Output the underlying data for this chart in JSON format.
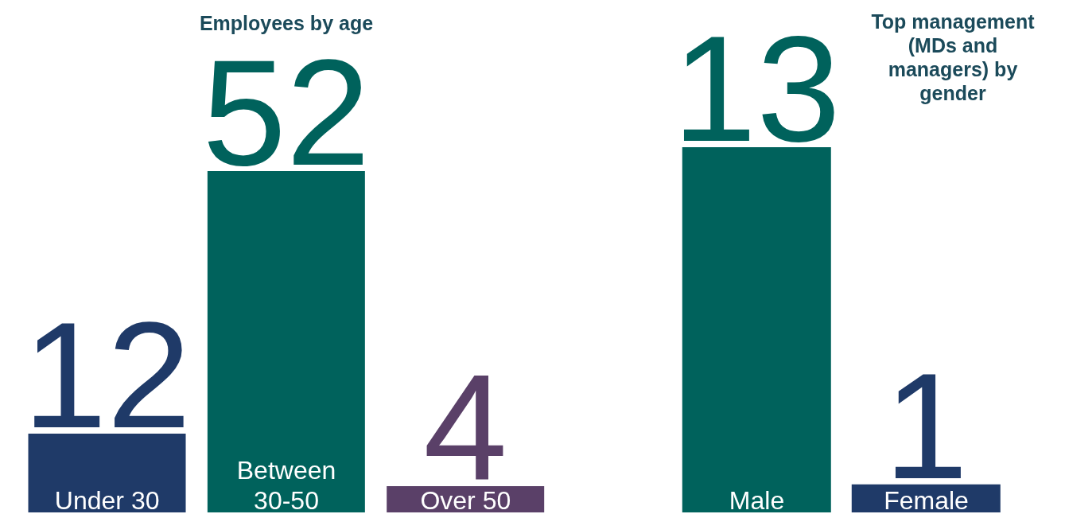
{
  "chart_data": [
    {
      "type": "bar",
      "title": "Employees by age",
      "categories": [
        "Under 30",
        "Between 30-50",
        "Over 50"
      ],
      "values": [
        12,
        52,
        4
      ],
      "colors": [
        "#1f3a68",
        "#00625c",
        "#5a4068"
      ],
      "data_labels": true
    },
    {
      "type": "bar",
      "title": "Top management (MDs and managers) by gender",
      "categories": [
        "Male",
        "Female"
      ],
      "values": [
        13,
        1
      ],
      "colors": [
        "#00625c",
        "#1f3a68"
      ],
      "data_labels": true
    }
  ]
}
